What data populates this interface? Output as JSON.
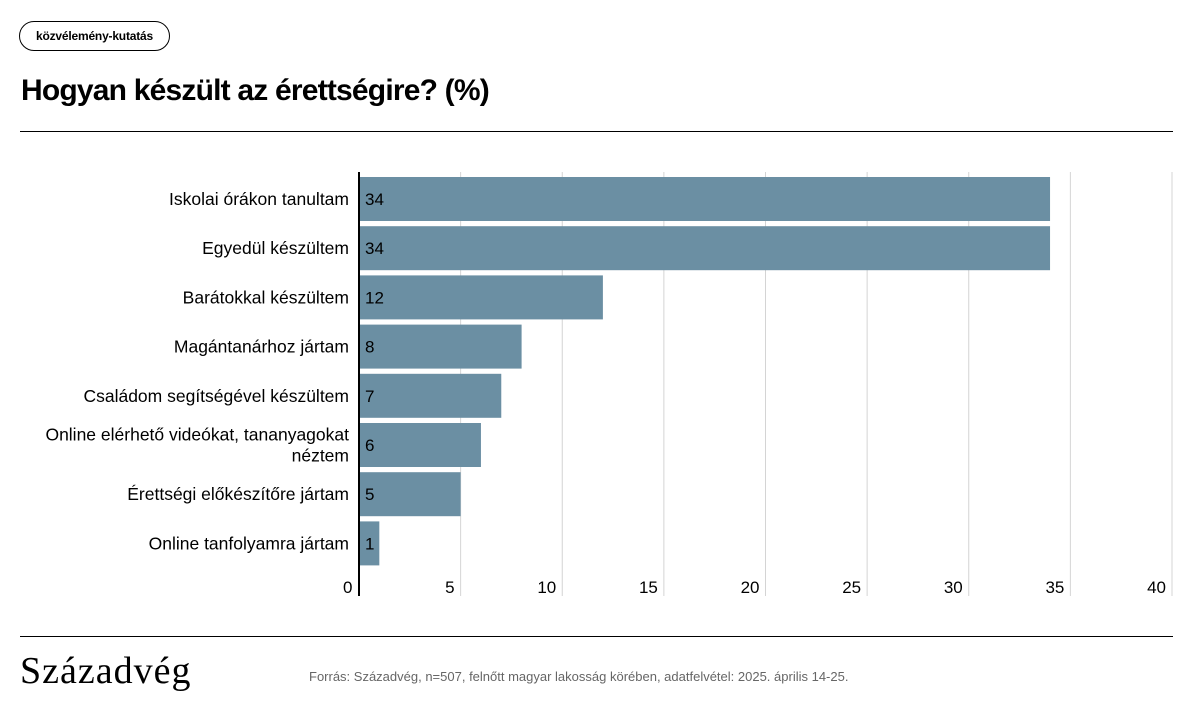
{
  "tag_label": "közvélemény-kutatás",
  "title": "Hogyan készült az érettségire? (%)",
  "logo_text": "Századvég",
  "source": "Forrás: Századvég, n=507, felnőtt magyar lakosság körében, adatfelvétel: 2025. április 14-25.",
  "chart_data": {
    "type": "bar",
    "orientation": "horizontal",
    "categories": [
      [
        "Iskolai órákon tanultam"
      ],
      [
        "Egyedül készültem"
      ],
      [
        "Barátokkal készültem"
      ],
      [
        "Magántanárhoz jártam"
      ],
      [
        "Családom segítségével készültem"
      ],
      [
        "Online elérhető videókat, tananyagokat",
        "néztem"
      ],
      [
        "Érettségi előkészítőre jártam"
      ],
      [
        "Online tanfolyamra jártam"
      ]
    ],
    "values": [
      34,
      34,
      12,
      8,
      7,
      6,
      5,
      1
    ],
    "xlim": [
      0,
      40
    ],
    "xticks": [
      0,
      5,
      10,
      15,
      20,
      25,
      30,
      35,
      40
    ],
    "grid": true,
    "bar_color": "#6b8fa3",
    "grid_color": "#d4d4d4",
    "axis_color": "#000000"
  }
}
